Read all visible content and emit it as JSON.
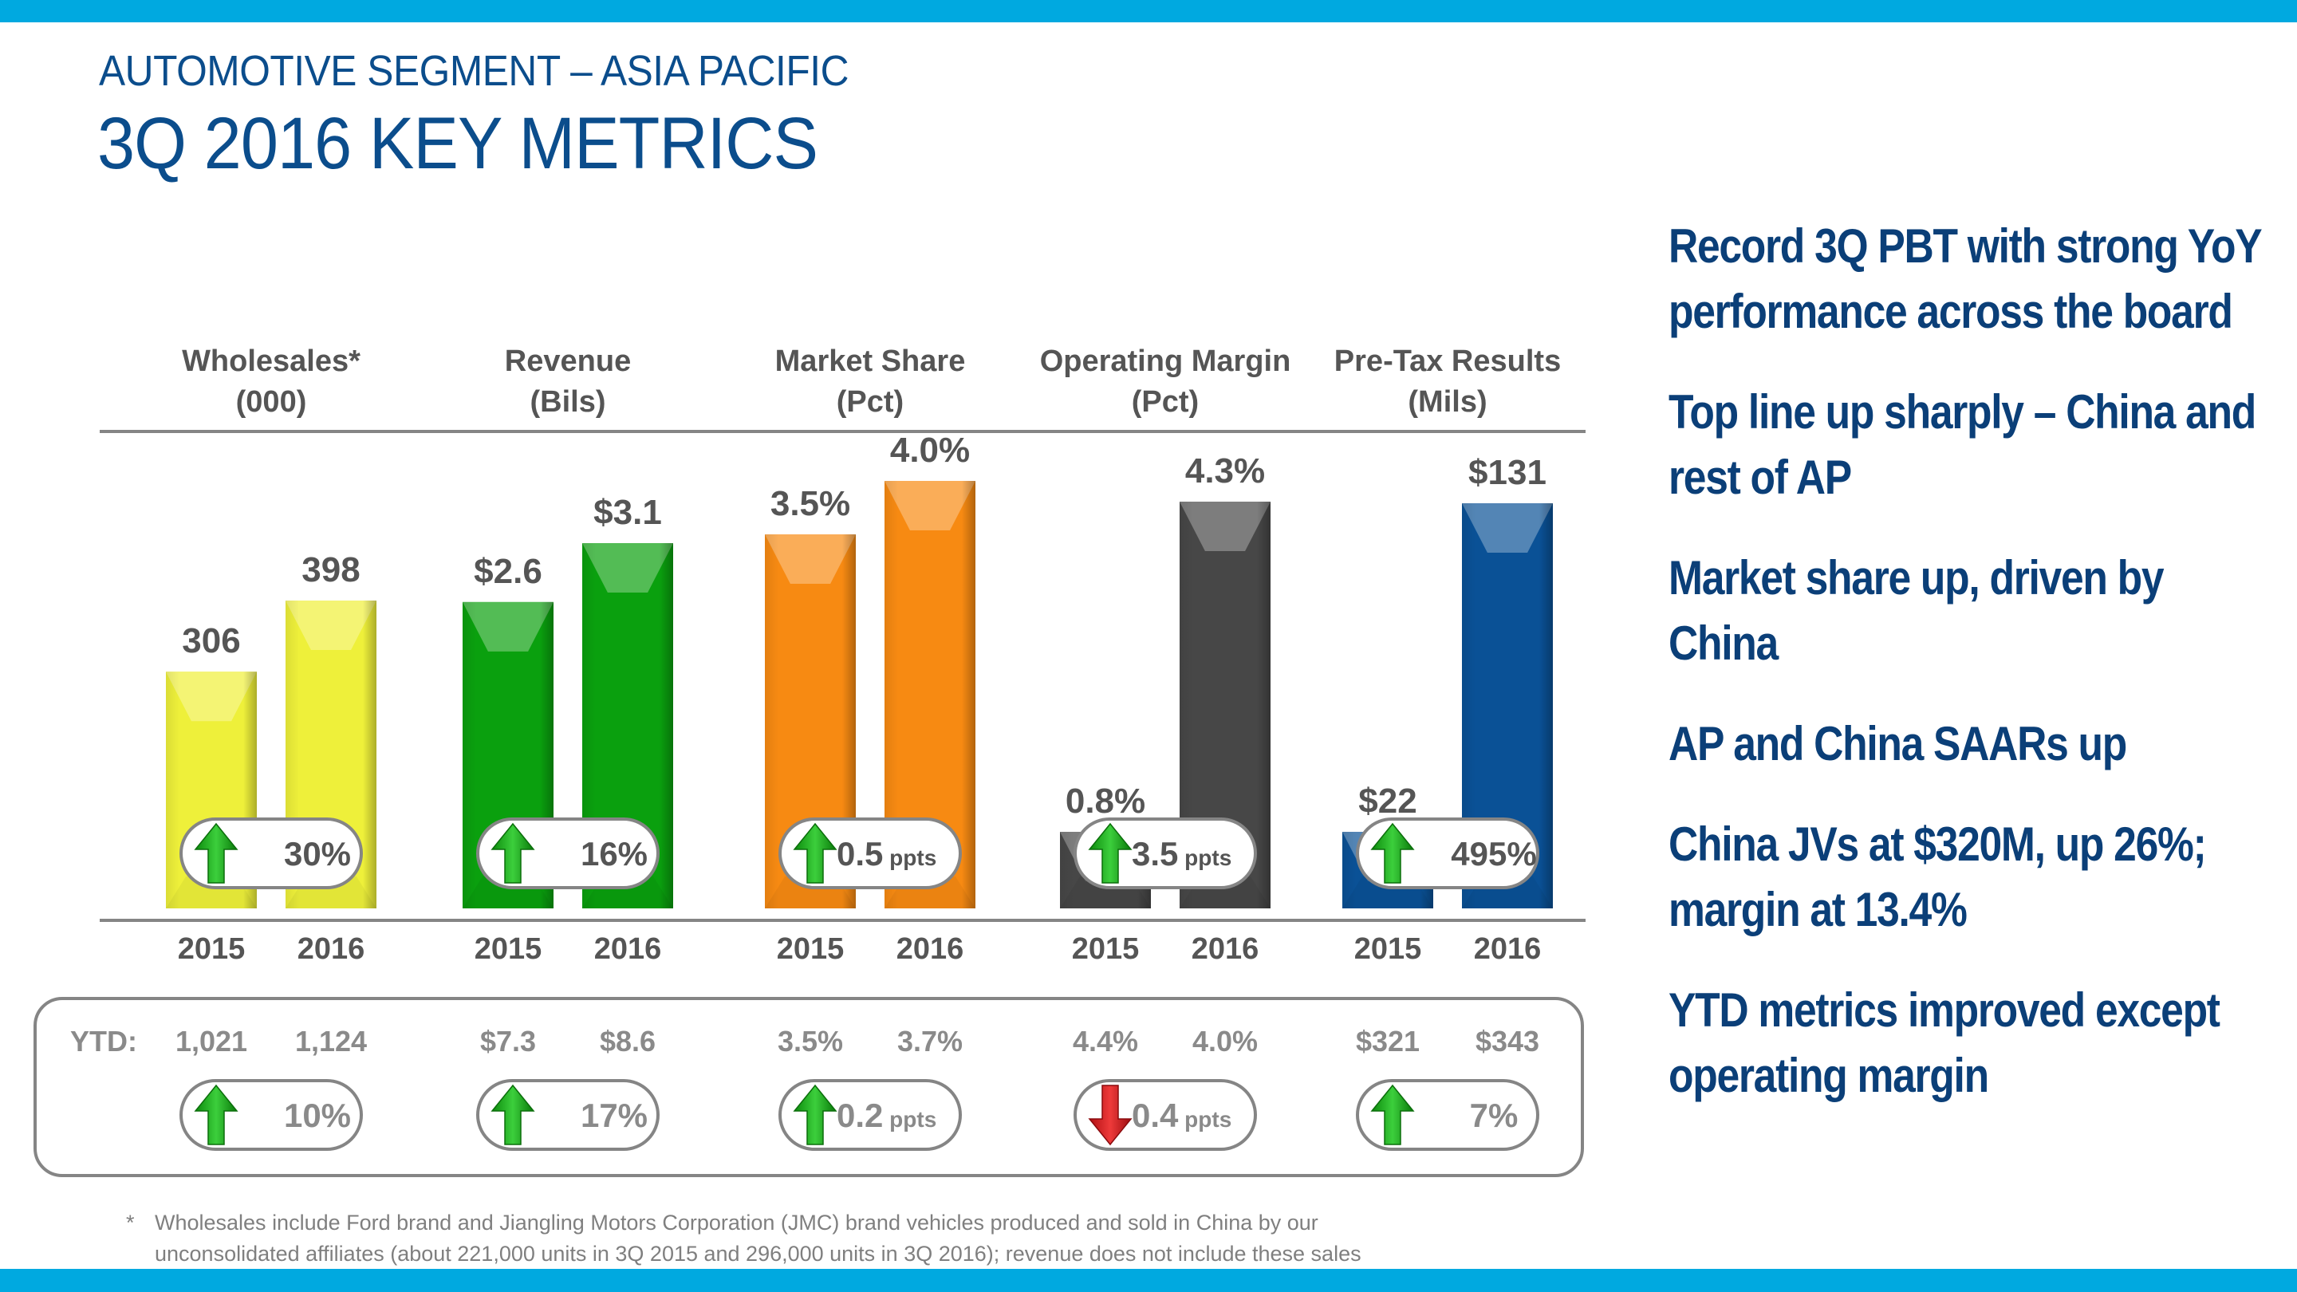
{
  "header": {
    "subtitle": "AUTOMOTIVE SEGMENT – ASIA PACIFIC",
    "title": "3Q 2016 KEY METRICS"
  },
  "colors": {
    "band": "#00a9e0",
    "title": "#0b4d8c",
    "bullet_text": "#0b3f78",
    "up_arrow": "#1a9b1a",
    "down_arrow": "#d0161b"
  },
  "chart_data": {
    "type": "bar",
    "title": "3Q 2016 Key Metrics",
    "categories": [
      "2015",
      "2016"
    ],
    "metrics": [
      {
        "name": "Wholesales*",
        "unit": "(000)",
        "color": "#eef03a",
        "values": [
          306,
          398
        ],
        "labels": [
          "306",
          "398"
        ],
        "change": {
          "direction": "up",
          "value": "30%",
          "unit": ""
        },
        "ytd": {
          "labels": [
            "1,021",
            "1,124"
          ],
          "values": [
            1021,
            1124
          ],
          "change": {
            "direction": "up",
            "value": "10%",
            "unit": ""
          }
        }
      },
      {
        "name": "Revenue",
        "unit": "(Bils)",
        "color": "#0aa00e",
        "values": [
          2.6,
          3.1
        ],
        "labels": [
          "$2.6",
          "$3.1"
        ],
        "change": {
          "direction": "up",
          "value": "16%",
          "unit": ""
        },
        "ytd": {
          "labels": [
            "$7.3",
            "$8.6"
          ],
          "values": [
            7.3,
            8.6
          ],
          "change": {
            "direction": "up",
            "value": "17%",
            "unit": ""
          }
        }
      },
      {
        "name": "Market Share",
        "unit": "(Pct)",
        "color": "#f78a12",
        "values": [
          3.5,
          4.0
        ],
        "labels": [
          "3.5%",
          "4.0%"
        ],
        "change": {
          "direction": "up",
          "value": "0.5",
          "unit": "ppts"
        },
        "ytd": {
          "labels": [
            "3.5%",
            "3.7%"
          ],
          "values": [
            3.5,
            3.7
          ],
          "change": {
            "direction": "up",
            "value": "0.2",
            "unit": "ppts"
          }
        }
      },
      {
        "name": "Operating Margin",
        "unit": "(Pct)",
        "color": "#474747",
        "values": [
          0.8,
          4.3
        ],
        "labels": [
          "0.8%",
          "4.3%"
        ],
        "change": {
          "direction": "up",
          "value": "3.5",
          "unit": "ppts"
        },
        "ytd": {
          "labels": [
            "4.4%",
            "4.0%"
          ],
          "values": [
            4.4,
            4.0
          ],
          "change": {
            "direction": "down",
            "value": "0.4",
            "unit": "ppts"
          }
        }
      },
      {
        "name": "Pre-Tax Results",
        "unit": "(Mils)",
        "color": "#0a5196",
        "values": [
          22,
          131
        ],
        "labels": [
          "$22",
          "$131"
        ],
        "change": {
          "direction": "up",
          "value": "495%",
          "unit": ""
        },
        "ytd": {
          "labels": [
            "$321",
            "$343"
          ],
          "values": [
            321,
            343
          ],
          "change": {
            "direction": "up",
            "value": "7%",
            "unit": ""
          }
        }
      }
    ],
    "ytd_label": "YTD:"
  },
  "footnote": {
    "marker": "*",
    "line1": "Wholesales include Ford brand and Jiangling Motors Corporation (JMC) brand vehicles produced and sold in China by our",
    "line2": "unconsolidated affiliates (about 221,000 units in 3Q 2015 and 296,000 units in 3Q 2016); revenue does not include these sales"
  },
  "bullets": [
    "Record 3Q PBT with strong YoY performance across the board",
    "Top line up sharply – China and rest of AP",
    "Market share up, driven by China",
    "AP and China SAARs up",
    "China JVs at $320M, up 26%; margin at 13.4%",
    "YTD metrics improved except operating margin"
  ]
}
